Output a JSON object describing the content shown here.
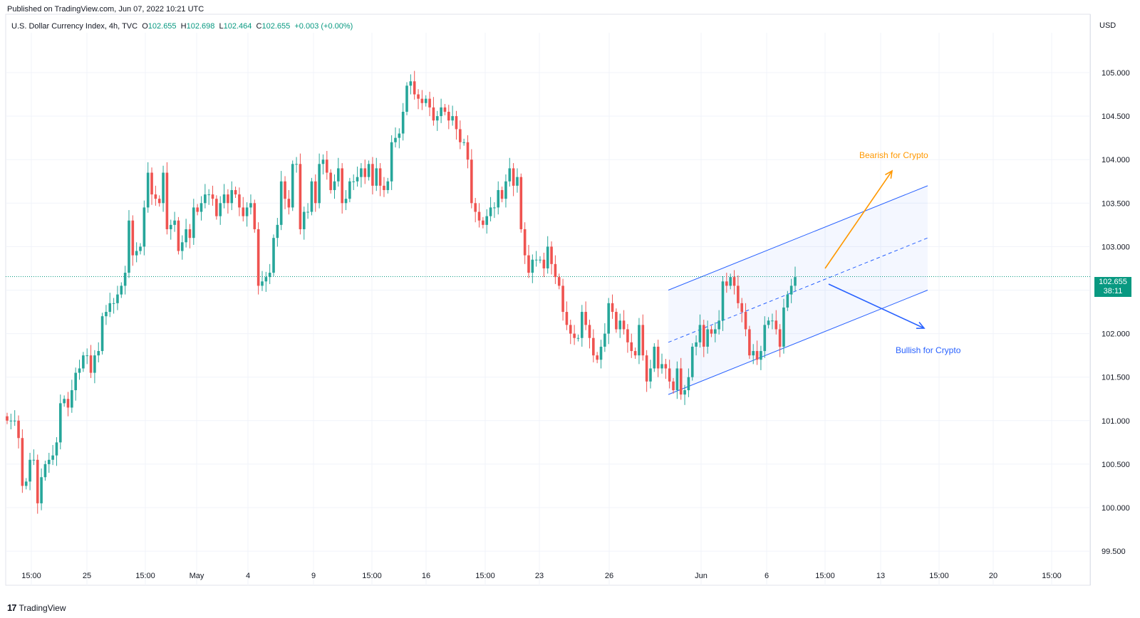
{
  "header": {
    "published": "Published on TradingView.com, Jun 07, 2022 10:21 UTC",
    "symbol": "U.S. Dollar Currency Index, 4h, TVC",
    "o_label": "O",
    "o_value": "102.655",
    "h_label": "H",
    "h_value": "102.698",
    "l_label": "L",
    "l_value": "102.464",
    "c_label": "C",
    "c_value": "102.655",
    "change": "+0.003 (+0.00%)",
    "currency": "USD"
  },
  "price_tag": {
    "price": "102.655",
    "countdown": "38:11"
  },
  "footer": {
    "logo_text": "TradingView",
    "logo_mark": "17"
  },
  "colors": {
    "up": "#26a69a",
    "down": "#ef5350",
    "grid": "#f0f3fa",
    "bearish": "#ff9800",
    "bullish": "#2962ff",
    "channel": "#2962ff"
  },
  "chart_data": {
    "type": "candlestick",
    "ylim": [
      99.3,
      105.4
    ],
    "y_ticks": [
      "105.000",
      "104.500",
      "104.000",
      "103.500",
      "103.000",
      "102.500",
      "102.000",
      "101.500",
      "101.000",
      "100.500",
      "100.000",
      "99.500"
    ],
    "x_ticks": [
      "15:00",
      "25",
      "15:00",
      "May",
      "4",
      "9",
      "15:00",
      "16",
      "15:00",
      "23",
      "26",
      "Jun",
      "6",
      "15:00",
      "13",
      "15:00",
      "20",
      "15:00"
    ],
    "last_price": 102.655,
    "annotations": [
      {
        "text": "Bearish for Crypto",
        "color": "#ff9800"
      },
      {
        "text": "Bullish for Crypto",
        "color": "#2962ff"
      }
    ],
    "closes": [
      101.0,
      101.0,
      101.0,
      100.8,
      100.25,
      100.3,
      100.55,
      100.55,
      100.05,
      100.35,
      100.5,
      100.55,
      100.6,
      100.75,
      101.2,
      101.25,
      101.15,
      101.35,
      101.55,
      101.6,
      101.75,
      101.75,
      101.55,
      101.75,
      101.8,
      102.2,
      102.25,
      102.35,
      102.35,
      102.45,
      102.55,
      102.7,
      103.3,
      102.9,
      102.95,
      103.0,
      103.45,
      103.85,
      103.6,
      103.55,
      103.5,
      103.85,
      103.2,
      103.25,
      103.3,
      102.95,
      103.05,
      103.2,
      103.1,
      103.45,
      103.4,
      103.5,
      103.6,
      103.6,
      103.55,
      103.35,
      103.5,
      103.6,
      103.5,
      103.65,
      103.6,
      103.45,
      103.35,
      103.45,
      103.5,
      103.2,
      102.55,
      102.6,
      102.65,
      102.7,
      103.1,
      103.25,
      103.75,
      103.55,
      103.45,
      103.95,
      103.95,
      103.2,
      103.4,
      103.4,
      103.75,
      103.5,
      103.95,
      104.0,
      103.85,
      103.65,
      103.75,
      103.9,
      103.5,
      103.55,
      103.75,
      103.75,
      103.8,
      103.9,
      103.8,
      103.95,
      103.7,
      103.9,
      103.7,
      103.65,
      103.75,
      104.2,
      104.25,
      104.3,
      104.55,
      104.85,
      104.9,
      104.75,
      104.7,
      104.65,
      104.7,
      104.6,
      104.45,
      104.5,
      104.6,
      104.55,
      104.45,
      104.5,
      104.35,
      104.2,
      104.2,
      104.0,
      103.5,
      103.4,
      103.3,
      103.25,
      103.35,
      103.45,
      103.45,
      103.65,
      103.55,
      103.75,
      103.9,
      103.7,
      103.8,
      103.2,
      102.9,
      102.7,
      102.85,
      102.85,
      102.85,
      102.75,
      103.0,
      102.8,
      102.65,
      102.55,
      102.25,
      102.1,
      102.0,
      101.95,
      101.95,
      102.25,
      102.1,
      101.95,
      101.75,
      101.7,
      101.85,
      102.0,
      102.35,
      102.25,
      102.05,
      102.15,
      102.05,
      101.9,
      101.8,
      101.75,
      102.1,
      101.75,
      101.45,
      101.6,
      101.85,
      101.6,
      101.65,
      101.6,
      101.45,
      101.35,
      101.6,
      101.3,
      101.35,
      101.5,
      101.85,
      101.9,
      102.1,
      101.85,
      102.05,
      102.0,
      102.05,
      102.15,
      102.6,
      102.55,
      102.65,
      102.55,
      102.35,
      102.25,
      102.05,
      101.75,
      101.8,
      101.7,
      101.8,
      102.1,
      102.15,
      102.15,
      102.05,
      101.85,
      102.3,
      102.45,
      102.55,
      102.65
    ]
  }
}
